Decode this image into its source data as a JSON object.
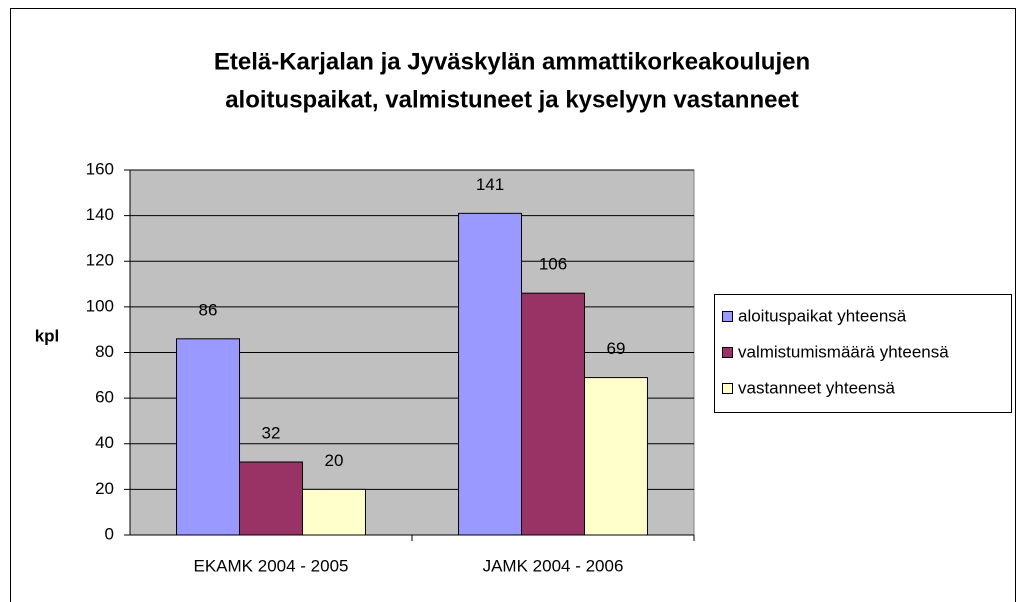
{
  "chart_data": {
    "type": "bar",
    "title": [
      "Etelä-Karjalan ja Jyväskylän ammattikorkeakoulujen",
      "aloituspaikat, valmistuneet ja kyselyyn vastanneet"
    ],
    "y_label": "kpl",
    "categories": [
      "EKAMK 2004 - 2005",
      "JAMK 2004 - 2006"
    ],
    "series": [
      {
        "name": "aloituspaikat yhteensä",
        "color": "#9999ff",
        "values": [
          86,
          141
        ]
      },
      {
        "name": "valmistumismäärä yhteensä",
        "color": "#993366",
        "values": [
          32,
          106
        ]
      },
      {
        "name": "vastanneet yhteensä",
        "color": "#ffffcc",
        "values": [
          20,
          69
        ]
      }
    ],
    "ylim": [
      0,
      160
    ],
    "yticks": [
      0,
      20,
      40,
      60,
      80,
      100,
      120,
      140,
      160
    ],
    "grid": true,
    "legend": "right",
    "plot_background": "#c0c0c0"
  }
}
